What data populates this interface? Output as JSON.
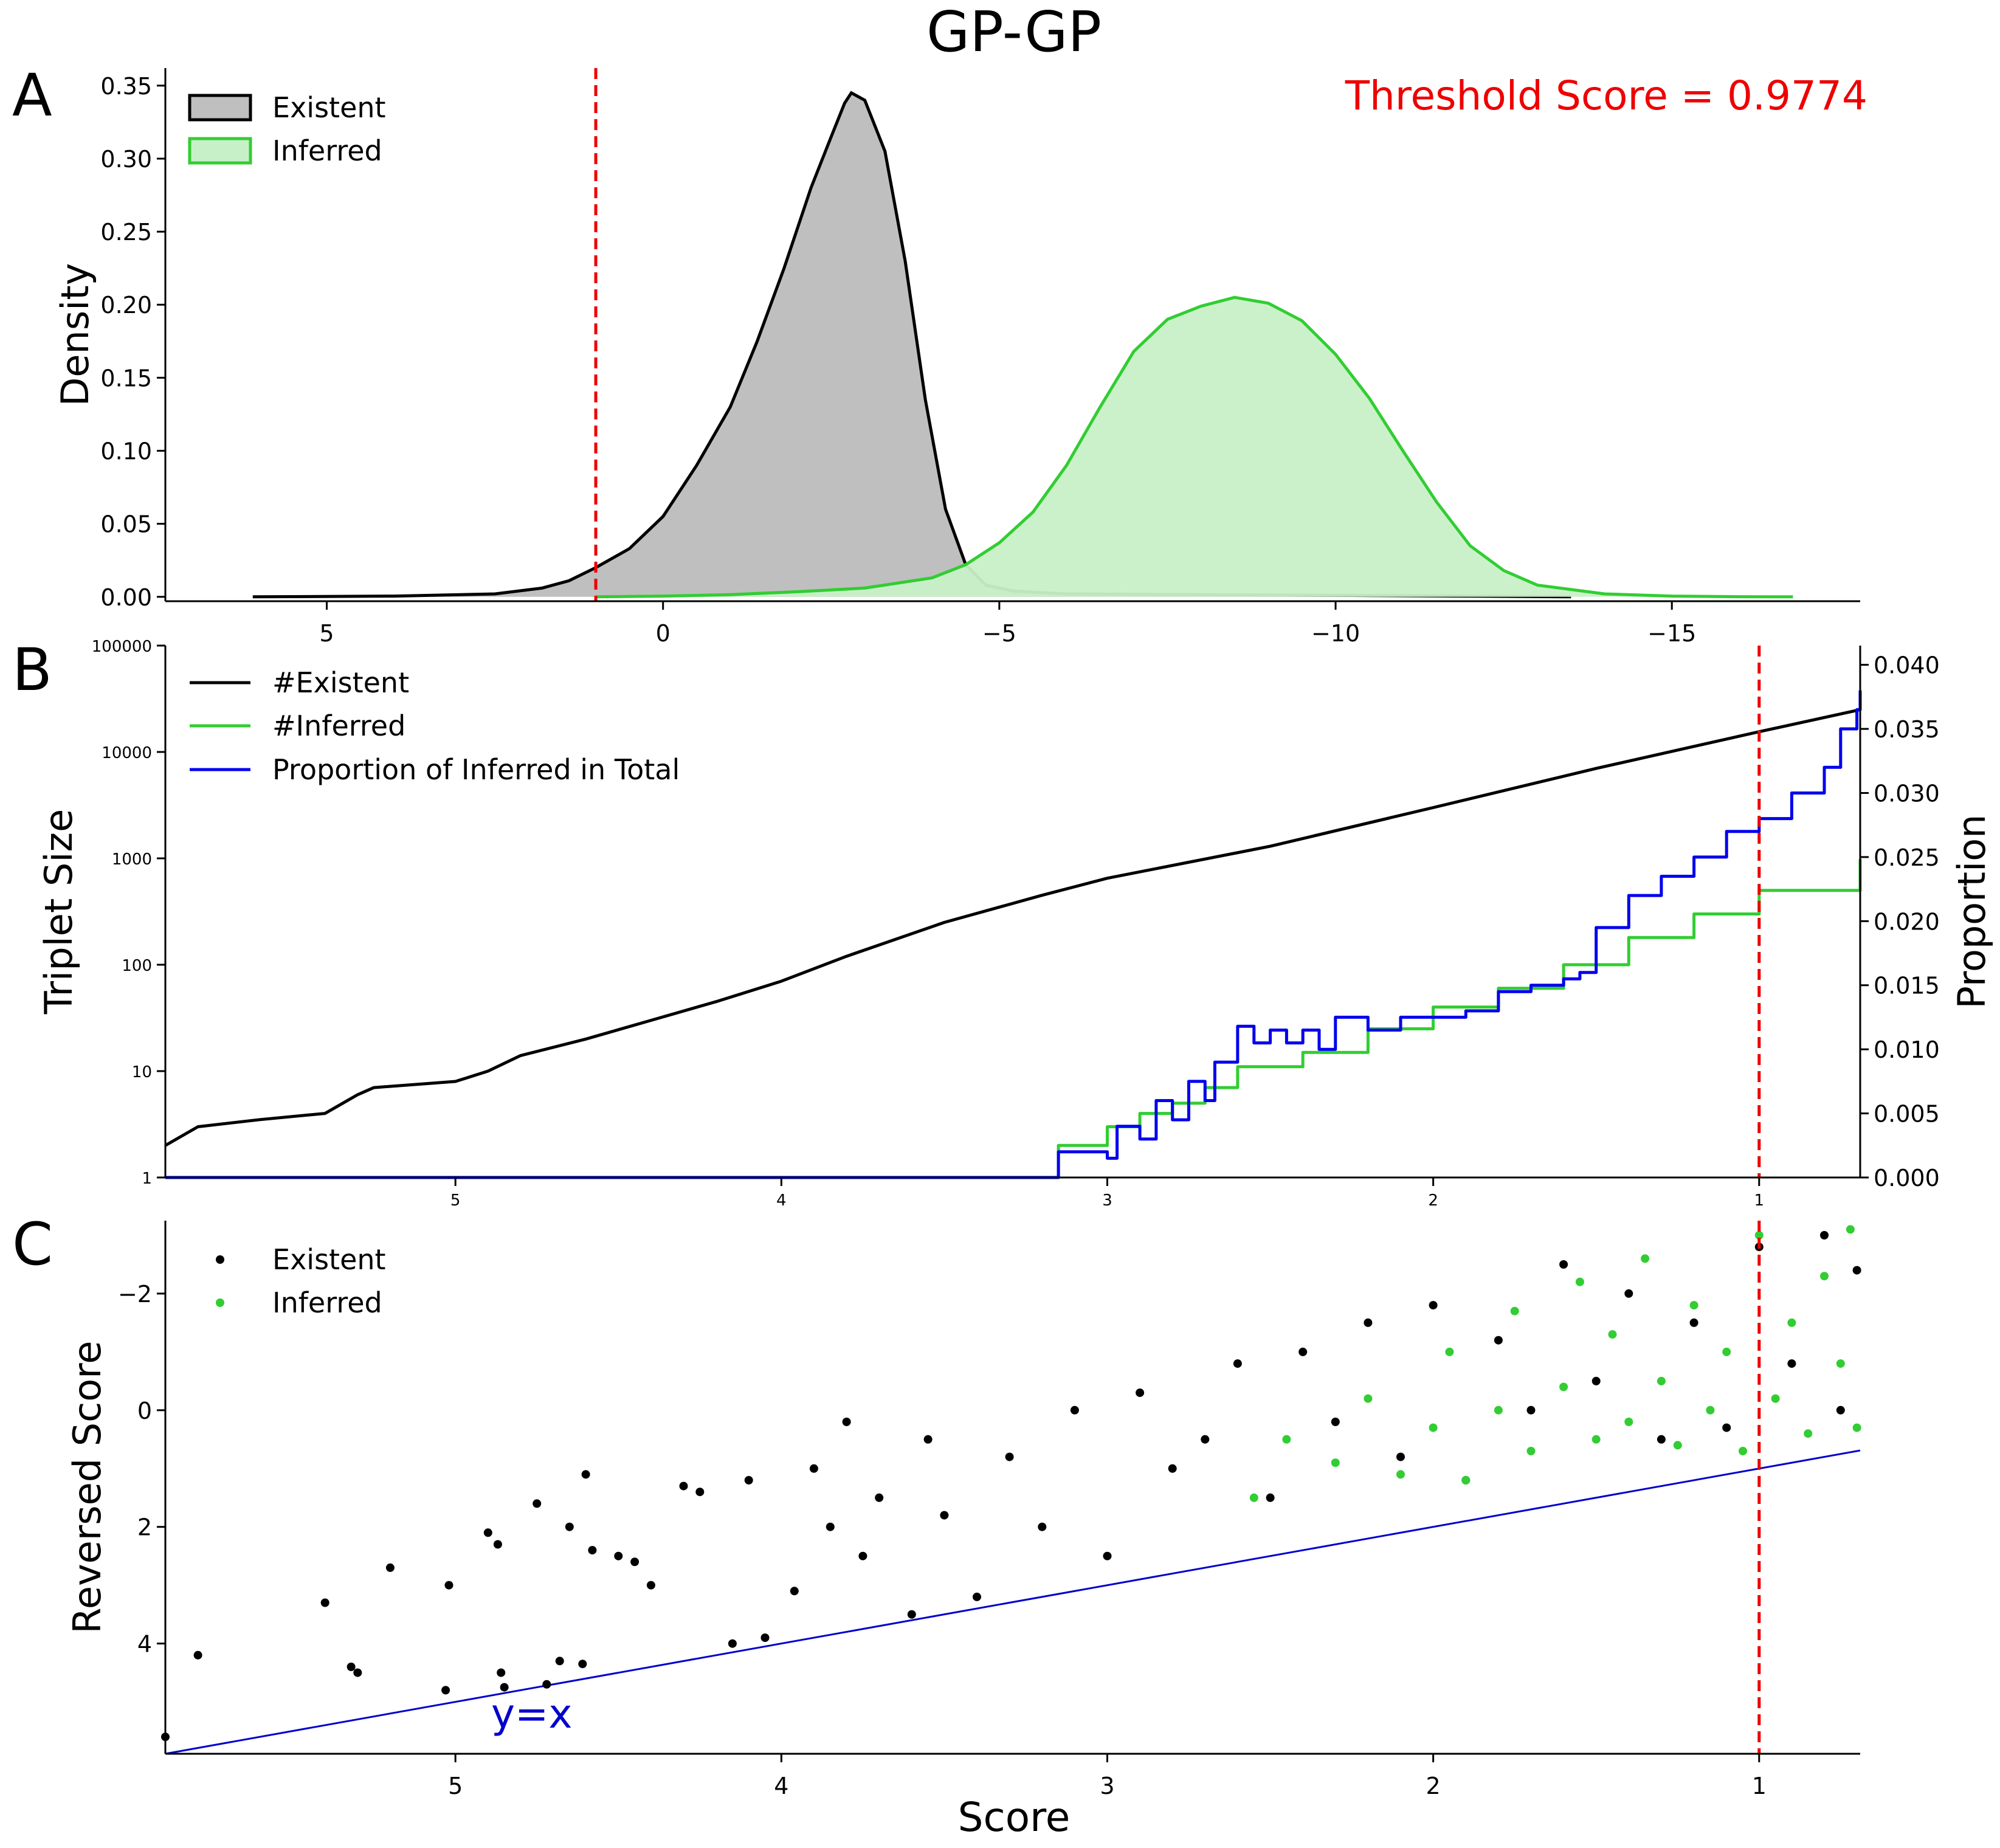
{
  "title": "GP-GP",
  "colors": {
    "existent": "#000000",
    "existent_fill": "#bfbfbf",
    "inferred": "#32cd32",
    "inferred_fill": "#c8f0c8",
    "proportion": "#0000ee",
    "threshold": "#ee0000",
    "identity_line": "#0000cc"
  },
  "panels": {
    "a": {
      "letter": "A"
    },
    "b": {
      "letter": "B"
    },
    "c": {
      "letter": "C"
    }
  },
  "chart_data": [
    {
      "panel": "A",
      "type": "area",
      "title": "",
      "annotation": "Threshold Score = 0.9774",
      "xlabel": "",
      "ylabel": "Density",
      "x_inverted": true,
      "xlim": [
        7.4,
        -17.8
      ],
      "ylim": [
        -0.003,
        0.362
      ],
      "xticks": [
        5,
        0,
        -5,
        -10,
        -15
      ],
      "xtick_labels": [
        "5",
        "0",
        "−5",
        "−10",
        "−15"
      ],
      "yticks": [
        0.0,
        0.05,
        0.1,
        0.15,
        0.2,
        0.25,
        0.3,
        0.35
      ],
      "ytick_labels": [
        "0.00",
        "0.05",
        "0.10",
        "0.15",
        "0.20",
        "0.25",
        "0.30",
        "0.35"
      ],
      "threshold_x": 1.0,
      "legend_placement": "upper-left",
      "series": [
        {
          "name": "Existent",
          "x": [
            6.1,
            4.0,
            2.5,
            1.8,
            1.4,
            1.0,
            0.5,
            0.0,
            -0.5,
            -1.0,
            -1.4,
            -1.8,
            -2.2,
            -2.5,
            -2.7,
            -2.8,
            -3.0,
            -3.3,
            -3.6,
            -3.9,
            -4.2,
            -4.5,
            -4.8,
            -5.2,
            -5.6,
            -6.0,
            -8.0,
            -10.0,
            -12.0,
            -13.5
          ],
          "y": [
            0.0,
            0.0005,
            0.002,
            0.006,
            0.011,
            0.02,
            0.033,
            0.055,
            0.09,
            0.13,
            0.175,
            0.225,
            0.28,
            0.315,
            0.338,
            0.345,
            0.34,
            0.305,
            0.23,
            0.135,
            0.06,
            0.022,
            0.008,
            0.004,
            0.003,
            0.002,
            0.0015,
            0.001,
            0.0005,
            0.0
          ]
        },
        {
          "name": "Inferred",
          "x": [
            1.0,
            0.0,
            -1.0,
            -2.0,
            -3.0,
            -4.0,
            -4.5,
            -5.0,
            -5.5,
            -6.0,
            -6.5,
            -7.0,
            -7.5,
            -8.0,
            -8.5,
            -9.0,
            -9.5,
            -10.0,
            -10.5,
            -11.0,
            -11.5,
            -12.0,
            -12.5,
            -13.0,
            -14.0,
            -15.0,
            -16.0,
            -16.8
          ],
          "y": [
            0.0,
            0.0005,
            0.0015,
            0.0035,
            0.006,
            0.013,
            0.022,
            0.037,
            0.058,
            0.09,
            0.13,
            0.168,
            0.19,
            0.199,
            0.205,
            0.201,
            0.189,
            0.166,
            0.136,
            0.1,
            0.065,
            0.035,
            0.018,
            0.008,
            0.002,
            0.0005,
            0.0001,
            0.0
          ]
        }
      ]
    },
    {
      "panel": "B",
      "type": "line",
      "title": "",
      "xlabel": "",
      "ylabel": "Triplet Size",
      "y2label": "Proportion",
      "x_inverted": true,
      "y_log": true,
      "xlim": [
        5.89,
        0.69
      ],
      "ylim": [
        1,
        100000
      ],
      "y2lim": [
        0.0,
        0.0415
      ],
      "xticks": [
        5,
        4,
        3,
        2,
        1
      ],
      "xtick_labels": [
        "5",
        "4",
        "3",
        "2",
        "1"
      ],
      "yticks": [
        1,
        10,
        100,
        1000,
        10000,
        100000
      ],
      "ytick_labels": [
        "1",
        "10",
        "100",
        "1000",
        "10000",
        "100000"
      ],
      "y2ticks": [
        0.0,
        0.005,
        0.01,
        0.015,
        0.02,
        0.025,
        0.03,
        0.035,
        0.04
      ],
      "y2tick_labels": [
        "0.000",
        "0.005",
        "0.010",
        "0.015",
        "0.020",
        "0.025",
        "0.030",
        "0.035",
        "0.040"
      ],
      "threshold_x": 1.0,
      "legend_placement": "upper-left",
      "series": [
        {
          "name": "#Existent",
          "axis": "left",
          "x": [
            5.89,
            5.79,
            5.6,
            5.4,
            5.3,
            5.25,
            5.0,
            4.9,
            4.8,
            4.6,
            4.4,
            4.2,
            4.0,
            3.8,
            3.5,
            3.2,
            3.0,
            2.5,
            2.0,
            1.5,
            1.0,
            0.69
          ],
          "y": [
            2,
            3,
            3.5,
            4,
            6,
            7,
            8,
            10,
            14,
            20,
            30,
            45,
            70,
            120,
            250,
            450,
            650,
            1300,
            3000,
            7000,
            15500,
            25000
          ]
        },
        {
          "name": "#Inferred",
          "axis": "left",
          "x": [
            5.89,
            3.15,
            3.15,
            3.0,
            2.9,
            2.8,
            2.7,
            2.6,
            2.4,
            2.2,
            2.0,
            1.8,
            1.6,
            1.4,
            1.2,
            1.0,
            0.69
          ],
          "y": [
            1,
            1,
            2,
            3,
            4,
            5,
            7,
            11,
            15,
            25,
            40,
            60,
            100,
            180,
            300,
            500,
            980
          ]
        },
        {
          "name": "Proportion of Inferred in Total",
          "axis": "right",
          "x": [
            5.89,
            3.15,
            3.15,
            3.0,
            2.97,
            2.9,
            2.85,
            2.8,
            2.75,
            2.7,
            2.67,
            2.6,
            2.55,
            2.5,
            2.45,
            2.4,
            2.35,
            2.3,
            2.2,
            2.1,
            2.0,
            1.9,
            1.8,
            1.7,
            1.6,
            1.55,
            1.5,
            1.4,
            1.3,
            1.2,
            1.1,
            1.0,
            0.9,
            0.8,
            0.75,
            0.7,
            0.69
          ],
          "y": [
            0.0,
            0.0,
            0.002,
            0.0015,
            0.004,
            0.003,
            0.006,
            0.0045,
            0.0075,
            0.006,
            0.009,
            0.0118,
            0.0105,
            0.0115,
            0.0105,
            0.0115,
            0.01,
            0.0125,
            0.0115,
            0.0125,
            0.0125,
            0.013,
            0.0145,
            0.015,
            0.0155,
            0.016,
            0.0195,
            0.022,
            0.0235,
            0.025,
            0.027,
            0.028,
            0.03,
            0.032,
            0.035,
            0.0365,
            0.038
          ]
        }
      ]
    },
    {
      "panel": "C",
      "type": "scatter",
      "title": "",
      "xlabel": "Score",
      "ylabel": "Reversed Score",
      "x_inverted": true,
      "y_inverted": true,
      "xlim": [
        5.89,
        0.69
      ],
      "ylim": [
        5.89,
        -3.25
      ],
      "xticks": [
        5,
        4,
        3,
        2,
        1
      ],
      "xtick_labels": [
        "5",
        "4",
        "3",
        "2",
        "1"
      ],
      "yticks": [
        4,
        2,
        0,
        -2
      ],
      "ytick_labels": [
        "4",
        "2",
        "0",
        "−2"
      ],
      "threshold_x": 1.0,
      "identity_label": "y=x",
      "legend_placement": "upper-left",
      "series": [
        {
          "name": "Existent",
          "x": [
            5.89,
            5.79,
            5.4,
            5.32,
            5.3,
            5.2,
            5.03,
            5.02,
            4.9,
            4.87,
            4.86,
            4.85,
            4.75,
            4.72,
            4.68,
            4.65,
            4.61,
            4.6,
            4.58,
            4.5,
            4.45,
            4.4,
            4.3,
            4.25,
            4.15,
            4.1,
            4.05,
            3.96,
            3.9,
            3.85,
            3.8,
            3.75,
            3.7,
            3.6,
            3.55,
            3.5,
            3.4,
            3.3,
            3.2,
            3.1,
            3.0,
            2.9,
            2.8,
            2.7,
            2.6,
            2.5,
            2.4,
            2.3,
            2.2,
            2.1,
            2.0,
            1.9,
            1.8,
            1.7,
            1.6,
            1.5,
            1.4,
            1.3,
            1.2,
            1.1,
            1.0,
            0.9,
            0.8,
            0.75,
            0.7
          ],
          "y": [
            5.6,
            4.2,
            3.3,
            4.4,
            4.5,
            2.7,
            4.8,
            3.0,
            2.1,
            2.3,
            4.5,
            4.75,
            1.6,
            4.7,
            4.3,
            2.0,
            4.35,
            1.1,
            2.4,
            2.5,
            2.6,
            3.0,
            1.3,
            1.4,
            4.0,
            1.2,
            3.9,
            3.1,
            1.0,
            2.0,
            0.2,
            2.5,
            1.5,
            3.5,
            0.5,
            1.8,
            3.2,
            0.8,
            2.0,
            0.0,
            2.5,
            -0.3,
            1.0,
            0.5,
            -0.8,
            1.5,
            -1.0,
            0.2,
            -1.5,
            0.8,
            -1.8,
            1.2,
            -1.2,
            0.0,
            -2.5,
            -0.5,
            -2.0,
            0.5,
            -1.5,
            0.3,
            -2.8,
            -0.8,
            -3.0,
            0.0,
            -2.4
          ]
        },
        {
          "name": "Inferred",
          "x": [
            2.55,
            2.45,
            2.3,
            2.2,
            2.1,
            2.0,
            1.95,
            1.9,
            1.8,
            1.75,
            1.7,
            1.6,
            1.55,
            1.5,
            1.45,
            1.4,
            1.35,
            1.3,
            1.25,
            1.2,
            1.15,
            1.1,
            1.05,
            1.0,
            0.95,
            0.9,
            0.85,
            0.8,
            0.75,
            0.72,
            0.7
          ],
          "y": [
            1.5,
            0.5,
            0.9,
            -0.2,
            1.1,
            0.3,
            -1.0,
            1.2,
            0.0,
            -1.7,
            0.7,
            -0.4,
            -2.2,
            0.5,
            -1.3,
            0.2,
            -2.6,
            -0.5,
            0.6,
            -1.8,
            0.0,
            -1.0,
            0.7,
            -3.0,
            -0.2,
            -1.5,
            0.4,
            -2.3,
            -0.8,
            -3.1,
            0.3
          ]
        }
      ]
    }
  ]
}
